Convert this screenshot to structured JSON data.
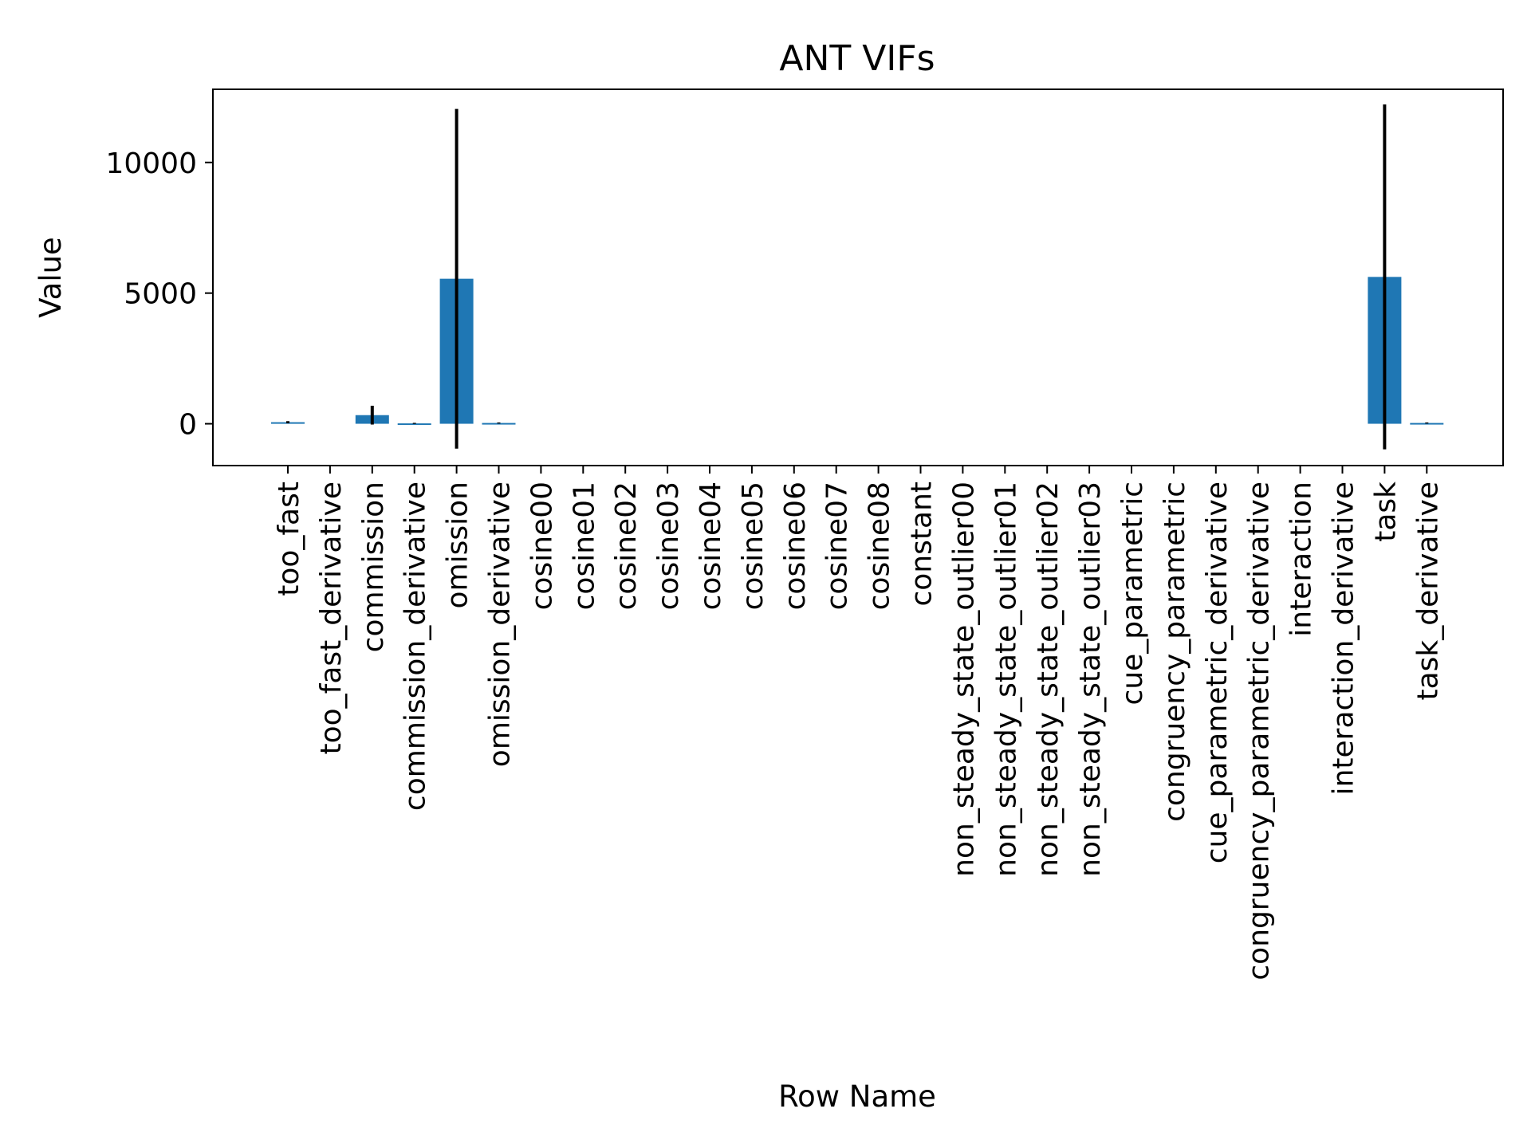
{
  "chart_data": {
    "type": "bar",
    "title": "ANT VIFs",
    "xlabel": "Row Name",
    "ylabel": "Value",
    "ylim": [
      -1600,
      12800
    ],
    "yticks": [
      0,
      5000,
      10000
    ],
    "grid": false,
    "bar_color": "#1f77b4",
    "errorbar_color": "#000000",
    "categories": [
      "too_fast",
      "too_fast_derivative",
      "commission",
      "commission_derivative",
      "omission",
      "omission_derivative",
      "cosine00",
      "cosine01",
      "cosine02",
      "cosine03",
      "cosine04",
      "cosine05",
      "cosine06",
      "cosine07",
      "cosine08",
      "constant",
      "non_steady_state_outlier00",
      "non_steady_state_outlier01",
      "non_steady_state_outlier02",
      "non_steady_state_outlier03",
      "cue_parametric",
      "congruency_parametric",
      "cue_parametric_derivative",
      "congruency_parametric_derivative",
      "interaction",
      "interaction_derivative",
      "task",
      "task_derivative"
    ],
    "values": [
      60,
      0,
      330,
      15,
      5550,
      30,
      0,
      0,
      0,
      0,
      0,
      0,
      0,
      0,
      0,
      0,
      0,
      0,
      0,
      0,
      0,
      0,
      0,
      0,
      0,
      0,
      5620,
      30
    ],
    "errors": [
      40,
      0,
      360,
      20,
      6500,
      20,
      0,
      0,
      0,
      0,
      0,
      0,
      0,
      0,
      0,
      0,
      0,
      0,
      0,
      0,
      0,
      0,
      0,
      0,
      0,
      0,
      6600,
      20
    ]
  }
}
